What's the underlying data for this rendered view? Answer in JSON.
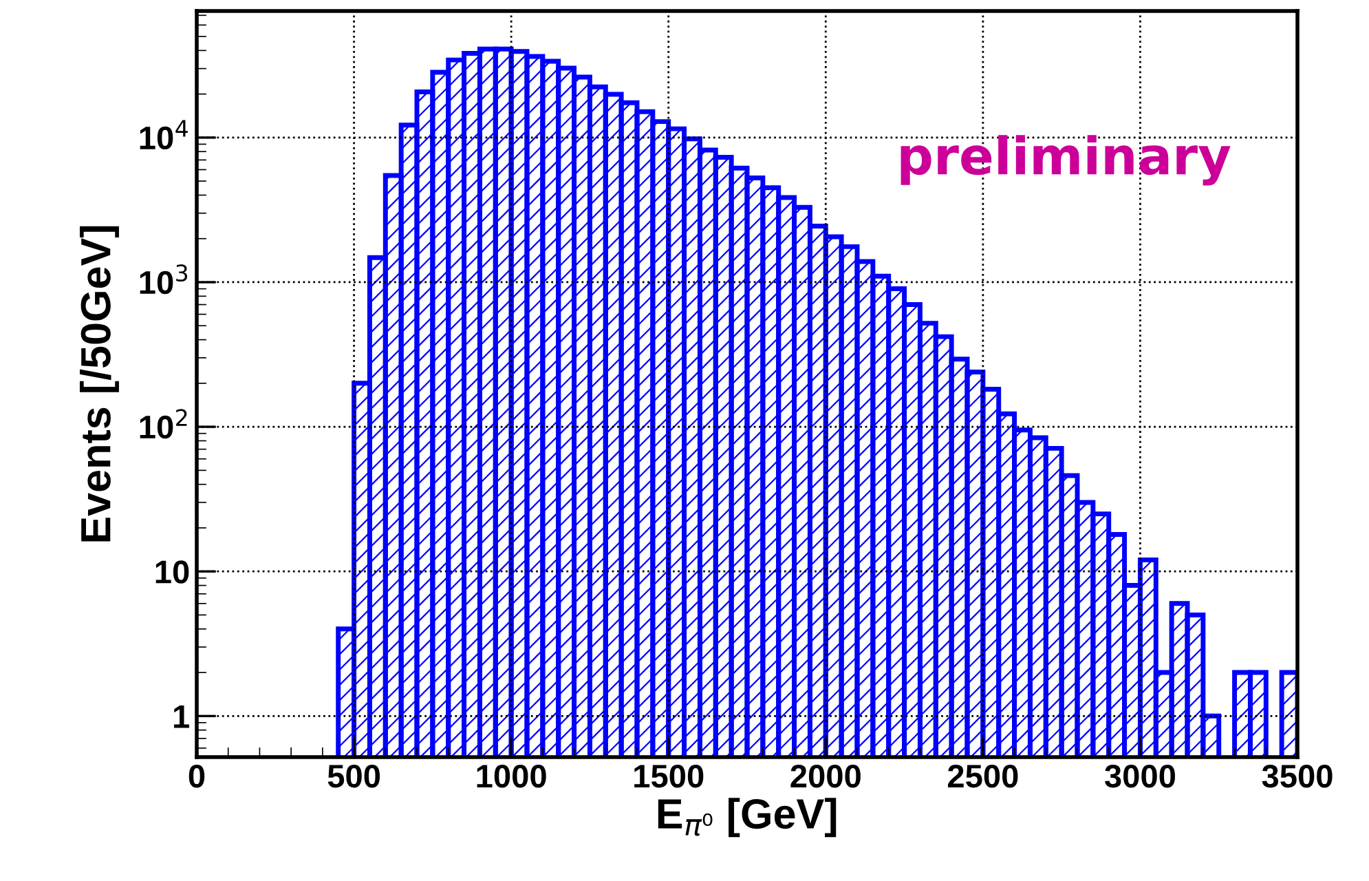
{
  "chart_data": {
    "type": "histogram",
    "xlabel": "E$_{π⁰}$ [GeV]",
    "ylabel": "Events [/50GeV]",
    "bins": [
      0,
      50,
      100,
      150,
      200,
      250,
      300,
      350,
      400,
      450,
      500,
      550,
      600,
      650,
      700,
      750,
      800,
      850,
      900,
      950,
      1000,
      1050,
      1100,
      1150,
      1200,
      1250,
      1300,
      1350,
      1400,
      1450,
      1500,
      1550,
      1600,
      1650,
      1700,
      1750,
      1800,
      1850,
      1900,
      1950,
      2000,
      2050,
      2100,
      2150,
      2200,
      2250,
      2300,
      2350,
      2400,
      2450,
      2500,
      2550,
      2600,
      2650,
      2700,
      2750,
      2800,
      2850,
      2900,
      2950,
      3000,
      3050,
      3100,
      3150,
      3200,
      3250,
      3300,
      3350,
      3400,
      3450,
      3500
    ],
    "values": [
      null,
      null,
      null,
      null,
      null,
      null,
      null,
      null,
      null,
      4,
      200,
      1480,
      5470,
      12200,
      20700,
      28300,
      34400,
      38200,
      40900,
      40900,
      39400,
      36400,
      33700,
      30200,
      26200,
      22400,
      19900,
      17400,
      15100,
      12900,
      11500,
      9800,
      8200,
      7300,
      6150,
      5260,
      4500,
      3850,
      3290,
      2440,
      2060,
      1760,
      1390,
      1100,
      900,
      700,
      520,
      420,
      294,
      239,
      182,
      123,
      95,
      84,
      71,
      46,
      30,
      25,
      18,
      8,
      12,
      2,
      6,
      5,
      1,
      null,
      2,
      2,
      null,
      2
    ],
    "color": "#0000ff",
    "xlim": [
      0,
      3500
    ],
    "xticks": [
      0,
      500,
      1000,
      1500,
      2000,
      2500,
      3000,
      3500
    ],
    "ylim": [
      0.52,
      75000
    ],
    "log": true,
    "yticks": [
      1,
      10,
      {
        "value": 100,
        "label": "10$^{2}$"
      },
      {
        "value": 1000,
        "label": "10$^{3}$"
      },
      {
        "value": 10000,
        "label": "10$^{4}$"
      }
    ],
    "grid": true,
    "annotations": [
      "preliminary"
    ]
  }
}
